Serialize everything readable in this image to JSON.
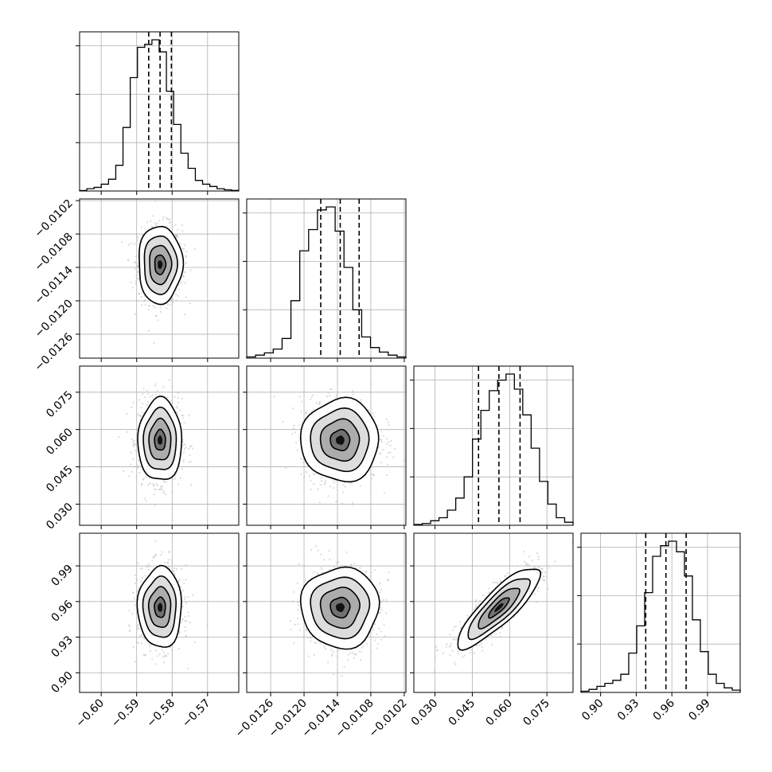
{
  "chart_data": {
    "type": "corner",
    "params": [
      {
        "xlim": [
          -0.6061,
          -0.5612
        ],
        "ticks": [
          -0.6,
          -0.59,
          -0.58,
          -0.57
        ],
        "tick_labels": [
          "−0.60",
          "−0.59",
          "−0.58",
          "−0.57"
        ],
        "quantiles": [
          -0.5866,
          -0.5834,
          -0.5802
        ],
        "median": -0.5834,
        "sigma": 0.0031,
        "hist_counts": [
          0.003,
          0.015,
          0.024,
          0.045,
          0.078,
          0.17,
          0.42,
          0.75,
          0.95,
          0.97,
          1.0,
          0.92,
          0.66,
          0.44,
          0.25,
          0.15,
          0.07,
          0.045,
          0.03,
          0.015,
          0.008,
          0.004
        ]
      },
      {
        "xlim": [
          -0.01303,
          -0.01017
        ],
        "ticks": [
          -0.0126,
          -0.012,
          -0.0114,
          -0.0108,
          -0.0102
        ],
        "tick_labels": [
          "−0.0126",
          "−0.0120",
          "−0.0114",
          "−0.0108",
          "−0.0102"
        ],
        "quantiles": [
          -0.0117,
          -0.01135,
          -0.01101
        ],
        "median": -0.01135,
        "sigma": 0.00035,
        "hist_counts": [
          0.008,
          0.02,
          0.035,
          0.06,
          0.13,
          0.38,
          0.71,
          0.85,
          0.98,
          1.0,
          0.84,
          0.6,
          0.32,
          0.14,
          0.07,
          0.04,
          0.02,
          0.008
        ]
      },
      {
        "xlim": [
          0.0215,
          0.0855
        ],
        "ticks": [
          0.03,
          0.045,
          0.06,
          0.075
        ],
        "tick_labels": [
          "0.030",
          "0.045",
          "0.060",
          "0.075"
        ],
        "quantiles": [
          0.0475,
          0.0557,
          0.0642
        ],
        "median": 0.0557,
        "sigma": 0.0083,
        "hist_counts": [
          0.005,
          0.012,
          0.03,
          0.05,
          0.1,
          0.18,
          0.32,
          0.57,
          0.76,
          0.89,
          0.96,
          1.0,
          0.9,
          0.73,
          0.51,
          0.29,
          0.14,
          0.05,
          0.02
        ]
      },
      {
        "xlim": [
          0.8835,
          1.0175
        ],
        "ticks": [
          0.9,
          0.93,
          0.96,
          0.99
        ],
        "tick_labels": [
          "0.90",
          "0.93",
          "0.96",
          "0.99"
        ],
        "quantiles": [
          0.938,
          0.955,
          0.972
        ],
        "median": 0.955,
        "sigma": 0.017,
        "hist_counts": [
          0.008,
          0.02,
          0.04,
          0.06,
          0.08,
          0.12,
          0.26,
          0.44,
          0.66,
          0.9,
          0.97,
          1.0,
          0.93,
          0.77,
          0.48,
          0.27,
          0.12,
          0.06,
          0.03,
          0.015
        ]
      }
    ],
    "correlations": {
      "2-3": 0.85
    },
    "grid": true,
    "contour_levels_sigma": [
      0.5,
      1.0,
      1.5,
      2.0
    ],
    "colors": {
      "line": "#000000",
      "points": "#bdbdbd",
      "grid": "#b0b0b0",
      "background": "#ffffff"
    }
  }
}
